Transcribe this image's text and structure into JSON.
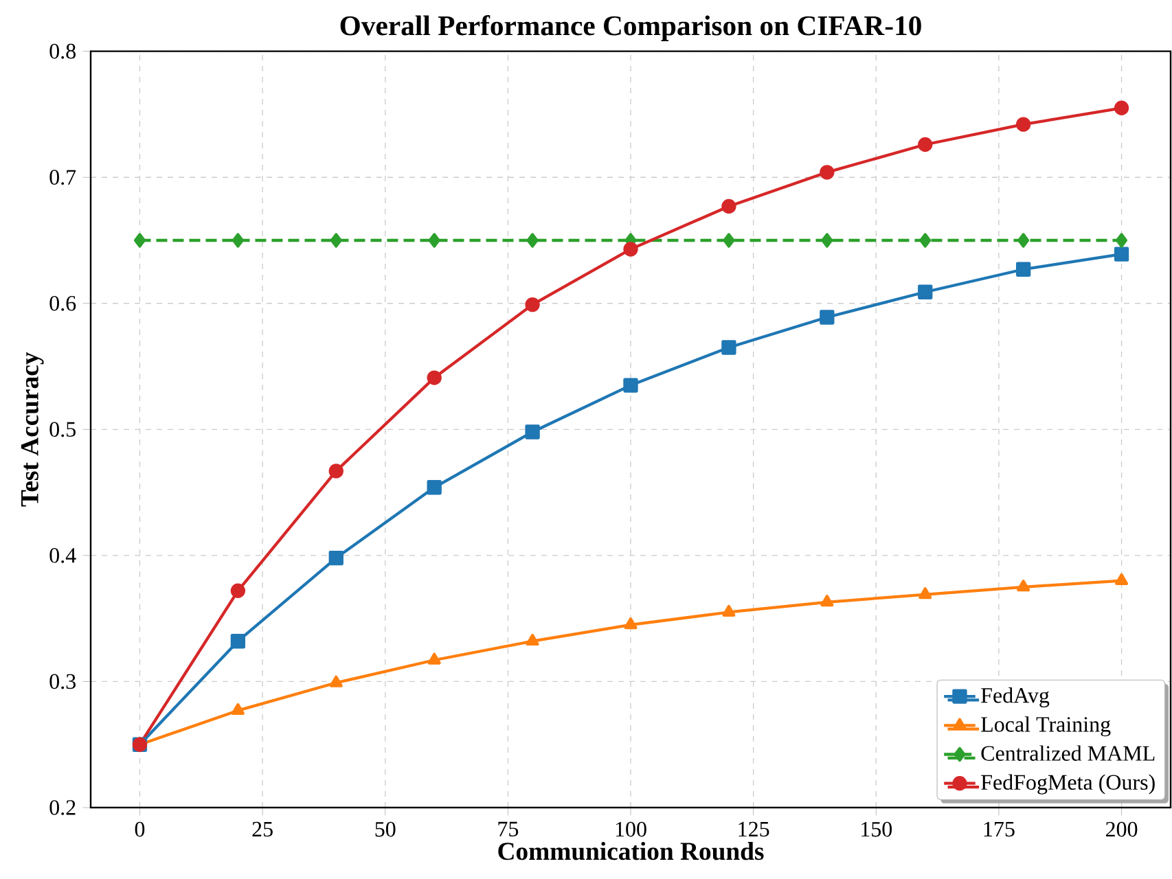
{
  "chart_data": {
    "type": "line",
    "title": "Overall Performance Comparison on CIFAR-10",
    "xlabel": "Communication Rounds",
    "ylabel": "Test Accuracy",
    "x": [
      0,
      20,
      40,
      60,
      80,
      100,
      120,
      140,
      160,
      180,
      200
    ],
    "series": [
      {
        "name": "FedAvg",
        "color": "#1f77b4",
        "marker": "square",
        "line_style": "solid",
        "values": [
          0.25,
          0.332,
          0.398,
          0.454,
          0.498,
          0.535,
          0.565,
          0.589,
          0.609,
          0.627,
          0.639
        ]
      },
      {
        "name": "Local Training",
        "color": "#ff7f0e",
        "marker": "triangle",
        "line_style": "solid",
        "values": [
          0.25,
          0.277,
          0.299,
          0.317,
          0.332,
          0.345,
          0.355,
          0.363,
          0.369,
          0.375,
          0.38
        ]
      },
      {
        "name": "Centralized MAML",
        "color": "#2ca02c",
        "marker": "diamond",
        "line_style": "dashed",
        "values": [
          0.65,
          0.65,
          0.65,
          0.65,
          0.65,
          0.65,
          0.65,
          0.65,
          0.65,
          0.65,
          0.65
        ]
      },
      {
        "name": "FedFogMeta (Ours)",
        "color": "#d62728",
        "marker": "circle",
        "line_style": "solid",
        "values": [
          0.25,
          0.372,
          0.467,
          0.541,
          0.599,
          0.643,
          0.677,
          0.704,
          0.726,
          0.742,
          0.755
        ]
      }
    ],
    "xlim": [
      -10,
      210
    ],
    "xticks": [
      0,
      25,
      50,
      75,
      100,
      125,
      150,
      175,
      200
    ],
    "ylim": [
      0.2,
      0.8
    ],
    "yticks": [
      0.2,
      0.3,
      0.4,
      0.5,
      0.6,
      0.7,
      0.8
    ],
    "grid": true,
    "legend": "bottom right"
  }
}
